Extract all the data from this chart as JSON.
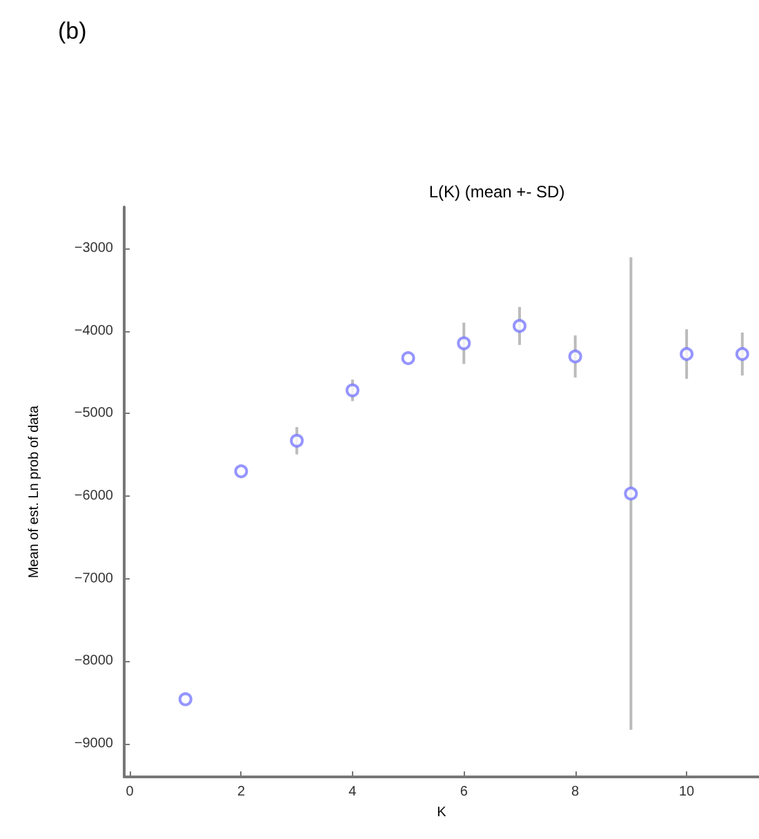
{
  "chart_data": {
    "type": "scatter",
    "title": "L(K) (mean +- SD)",
    "xlabel": "K",
    "ylabel": "Mean of est. Ln prob of data",
    "annotations": [
      "(b)"
    ],
    "x": [
      1,
      2,
      3,
      4,
      5,
      6,
      7,
      8,
      9,
      10,
      11
    ],
    "series": [
      {
        "color": "#7b7bff",
        "values": [
          -8460,
          -5700,
          -5330,
          -4720,
          -4330,
          -4150,
          -3940,
          -4310,
          -5970,
          -4280,
          -4280
        ],
        "errors": [
          null,
          null,
          165,
          130,
          null,
          250,
          230,
          255,
          2860,
          300,
          260
        ]
      }
    ],
    "xlim": [
      -0.1,
      11.3
    ],
    "ylim": [
      -9400,
      -2500
    ],
    "xticks": [
      0,
      2,
      4,
      6,
      8,
      10
    ],
    "yticks": [
      -9000,
      -8000,
      -7000,
      -6000,
      -5000,
      -4000,
      -3000
    ],
    "marker": "circle",
    "grid": false,
    "legend": false
  }
}
